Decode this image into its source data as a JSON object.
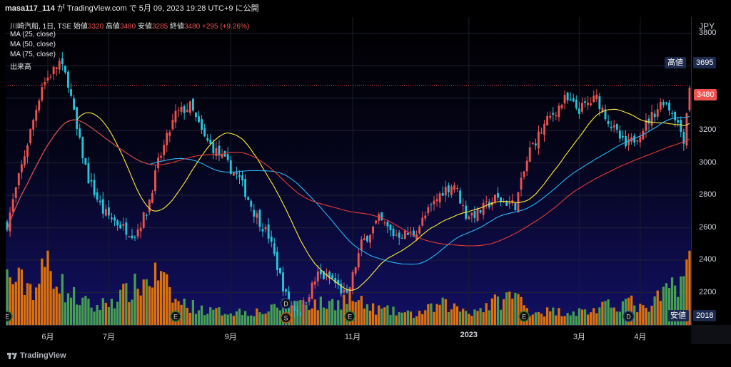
{
  "header": {
    "user": "masa117_114",
    "text": "が TradingView.com で 5月 09, 2023 19:28 UTC+9 に公開"
  },
  "legend": {
    "symbol": "川崎汽船, 1日, TSE",
    "open_label": "始値",
    "open": "3320",
    "high_label": "高値",
    "high": "3480",
    "low_label": "安値",
    "low": "3285",
    "close_label": "終値",
    "close": "3480",
    "change": "+295 (+9.26%)",
    "indicators": [
      "MA (25, close)",
      "MA (50, close)",
      "MA (75, close)",
      "出来高"
    ]
  },
  "price_axis": {
    "currency": "JPY",
    "high_badge": {
      "label": "高値",
      "value": "3695"
    },
    "last_price": "3480",
    "low_badge": {
      "label": "安値",
      "value": "2018"
    }
  },
  "footer": {
    "brand": "TradingView"
  },
  "colors": {
    "up": "#ef5350",
    "down": "#26c6da",
    "vol_up": "#f57c00",
    "vol_down": "#4caf50",
    "ma25": "#ffeb3b",
    "ma50": "#29b6f6",
    "ma75": "#e53935"
  },
  "chart_data": {
    "type": "candlestick",
    "title": "川崎汽船, 1日, TSE",
    "y_ticks": [
      2200,
      2400,
      2600,
      2800,
      3000,
      3200,
      3400,
      3600,
      3800
    ],
    "ylim": [
      2000,
      3900
    ],
    "x_ticks": [
      {
        "label": "6月",
        "index": 14
      },
      {
        "label": "7月",
        "index": 35
      },
      {
        "label": "9月",
        "index": 77
      },
      {
        "label": "11月",
        "index": 119
      },
      {
        "label": "2023",
        "index": 159,
        "bold": true
      },
      {
        "label": "3月",
        "index": 197
      },
      {
        "label": "4月",
        "index": 218
      }
    ],
    "events": [
      {
        "type": "E",
        "index": 0
      },
      {
        "type": "E",
        "index": 58
      },
      {
        "type": "E",
        "index": 118
      },
      {
        "type": "E",
        "index": 178
      },
      {
        "type": "D",
        "index": 96
      },
      {
        "type": "S",
        "index": 96
      },
      {
        "type": "D",
        "index": 214
      }
    ],
    "candle_count": 236,
    "price_anchors": [
      [
        0,
        2620
      ],
      [
        6,
        3050
      ],
      [
        12,
        3480
      ],
      [
        18,
        3620
      ],
      [
        21,
        3500
      ],
      [
        24,
        3200
      ],
      [
        28,
        2900
      ],
      [
        33,
        2700
      ],
      [
        40,
        2600
      ],
      [
        44,
        2560
      ],
      [
        48,
        2700
      ],
      [
        52,
        3000
      ],
      [
        58,
        3300
      ],
      [
        63,
        3350
      ],
      [
        68,
        3150
      ],
      [
        74,
        3030
      ],
      [
        80,
        2900
      ],
      [
        85,
        2700
      ],
      [
        90,
        2550
      ],
      [
        94,
        2300
      ],
      [
        97,
        2120
      ],
      [
        101,
        2090
      ],
      [
        107,
        2310
      ],
      [
        112,
        2280
      ],
      [
        117,
        2170
      ],
      [
        122,
        2500
      ],
      [
        128,
        2650
      ],
      [
        133,
        2560
      ],
      [
        140,
        2560
      ],
      [
        145,
        2700
      ],
      [
        150,
        2830
      ],
      [
        154,
        2870
      ],
      [
        158,
        2680
      ],
      [
        162,
        2690
      ],
      [
        168,
        2780
      ],
      [
        175,
        2740
      ],
      [
        180,
        3080
      ],
      [
        186,
        3260
      ],
      [
        192,
        3390
      ],
      [
        197,
        3330
      ],
      [
        203,
        3400
      ],
      [
        208,
        3230
      ],
      [
        213,
        3100
      ],
      [
        216,
        3150
      ],
      [
        220,
        3240
      ],
      [
        226,
        3390
      ],
      [
        230,
        3290
      ],
      [
        233,
        3150
      ],
      [
        235,
        3480
      ]
    ],
    "volume_anchors": [
      [
        0,
        0.7
      ],
      [
        10,
        0.55
      ],
      [
        14,
        0.95
      ],
      [
        20,
        0.5
      ],
      [
        30,
        0.25
      ],
      [
        40,
        0.45
      ],
      [
        52,
        0.75
      ],
      [
        58,
        0.35
      ],
      [
        70,
        0.2
      ],
      [
        90,
        0.2
      ],
      [
        97,
        0.35
      ],
      [
        110,
        0.3
      ],
      [
        118,
        0.4
      ],
      [
        125,
        0.25
      ],
      [
        140,
        0.15
      ],
      [
        150,
        0.3
      ],
      [
        160,
        0.2
      ],
      [
        175,
        0.45
      ],
      [
        180,
        0.2
      ],
      [
        200,
        0.2
      ],
      [
        214,
        0.35
      ],
      [
        220,
        0.2
      ],
      [
        235,
        0.85
      ]
    ]
  }
}
